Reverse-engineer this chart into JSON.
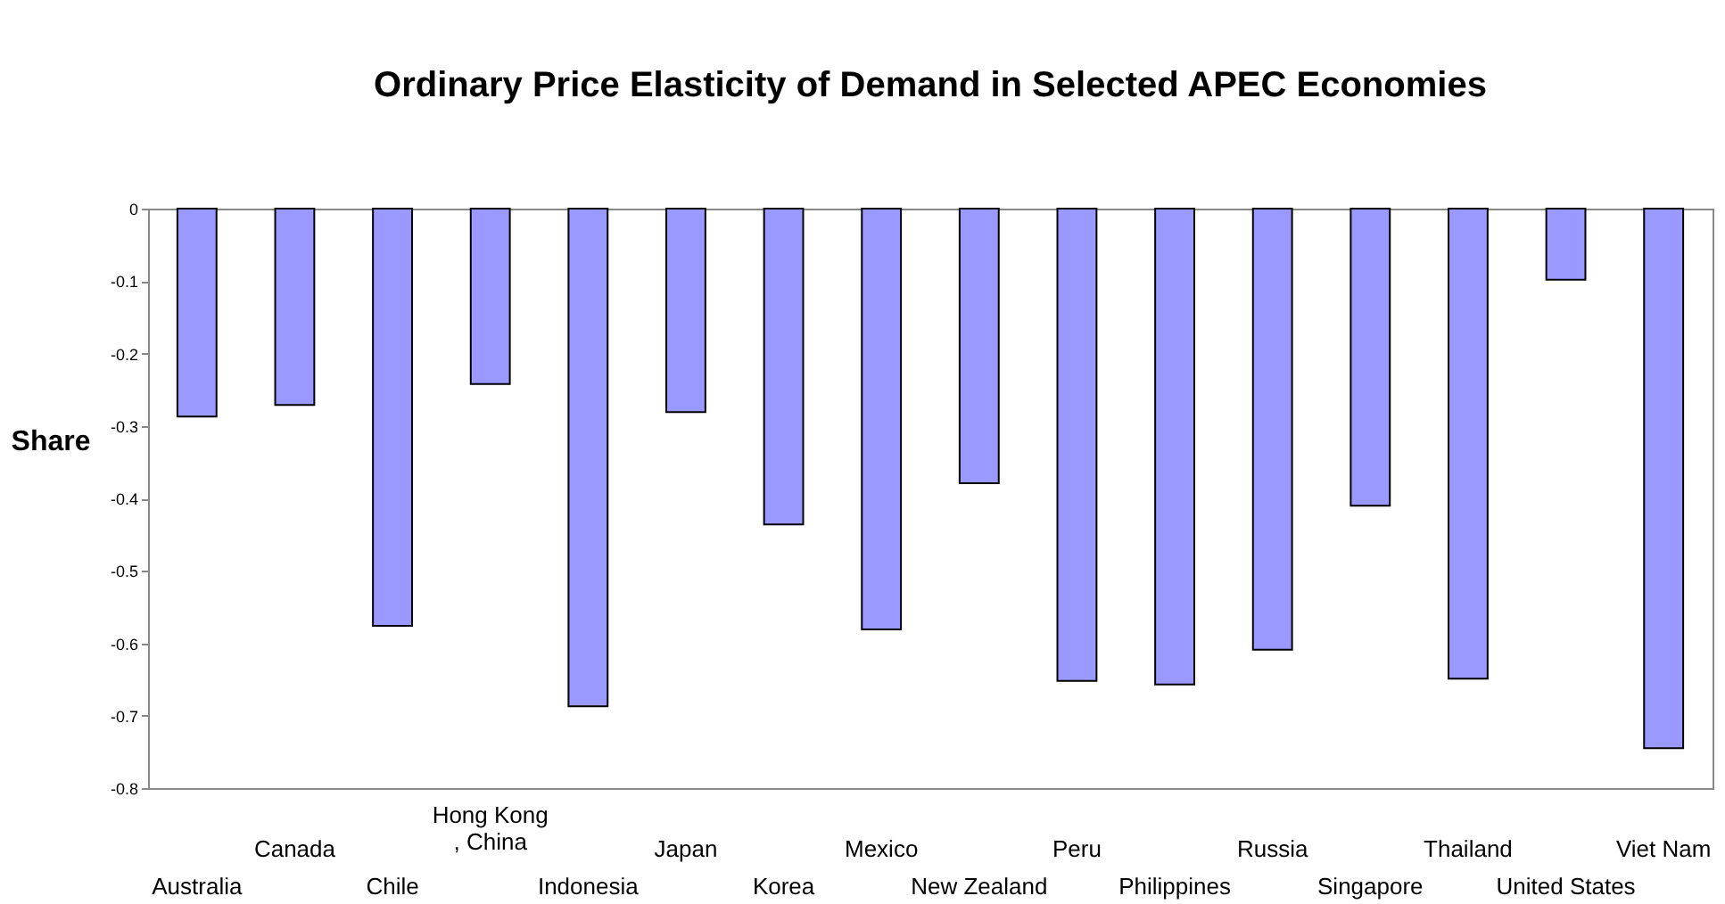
{
  "chart_data": {
    "type": "bar",
    "title": "Ordinary Price Elasticity of Demand in Selected APEC Economies",
    "ylabel": "Share",
    "categories": [
      "Australia",
      "Canada",
      "Chile",
      "Hong Kong, China",
      "Indonesia",
      "Japan",
      "Korea",
      "Mexico",
      "New Zealand",
      "Peru",
      "Philippines",
      "Russia",
      "Singapore",
      "Thailand",
      "United States",
      "Viet Nam"
    ],
    "values": [
      -0.287,
      -0.271,
      -0.576,
      -0.242,
      -0.687,
      -0.281,
      -0.436,
      -0.581,
      -0.379,
      -0.652,
      -0.657,
      -0.609,
      -0.41,
      -0.649,
      -0.098,
      -0.745
    ],
    "color": "#9999ff",
    "ylim": [
      -0.8,
      0
    ],
    "yticks": [
      -0.8,
      -0.7,
      -0.6,
      -0.5,
      -0.4,
      -0.3,
      -0.2,
      -0.1,
      0
    ],
    "grid": false
  }
}
